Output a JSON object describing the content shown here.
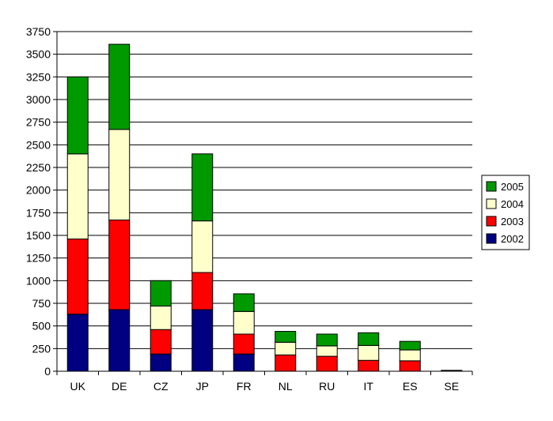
{
  "chart_data": {
    "type": "bar",
    "stacked": true,
    "categories": [
      "UK",
      "DE",
      "CZ",
      "JP",
      "FR",
      "NL",
      "RU",
      "IT",
      "ES",
      "SE"
    ],
    "series": [
      {
        "name": "2002",
        "color": "#000080",
        "values": [
          630,
          680,
          190,
          680,
          190,
          0,
          0,
          0,
          0,
          0
        ]
      },
      {
        "name": "2003",
        "color": "#ff0000",
        "values": [
          830,
          990,
          270,
          410,
          220,
          180,
          165,
          120,
          115,
          0
        ]
      },
      {
        "name": "2004",
        "color": "#ffffcc",
        "values": [
          940,
          1000,
          260,
          570,
          250,
          140,
          115,
          165,
          120,
          5
        ]
      },
      {
        "name": "2005",
        "color": "#009900",
        "values": [
          850,
          940,
          280,
          740,
          195,
          120,
          130,
          140,
          95,
          5
        ]
      }
    ],
    "ylim": [
      0,
      3750
    ],
    "yticks": [
      0,
      250,
      500,
      750,
      1000,
      1250,
      1500,
      1750,
      2000,
      2250,
      2500,
      2750,
      3000,
      3250,
      3500,
      3750
    ],
    "grid": true,
    "legend_position": "right"
  }
}
